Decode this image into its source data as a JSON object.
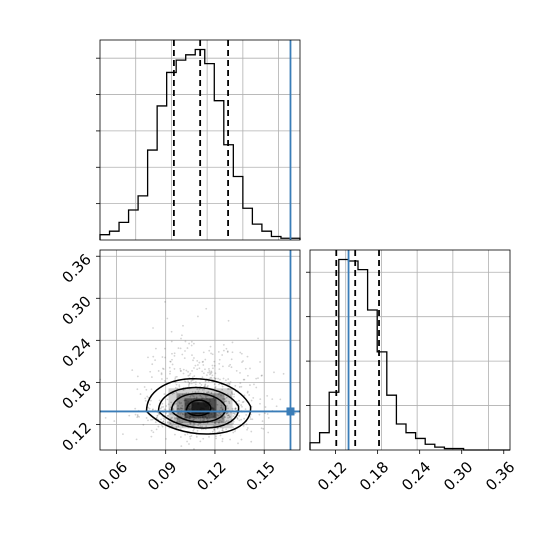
{
  "chart_data": [
    {
      "type": "histogram",
      "panel": "top-left marginal of x",
      "bin_edges": [
        0.05,
        0.0558,
        0.0616,
        0.0674,
        0.0732,
        0.079,
        0.0848,
        0.0906,
        0.0964,
        0.1022,
        0.108,
        0.1138,
        0.1196,
        0.1254,
        0.1312,
        0.137,
        0.1428,
        0.1486,
        0.1544,
        0.1602,
        0.166,
        0.1718
      ],
      "counts": [
        3,
        5,
        10,
        17,
        25,
        51,
        76,
        95,
        102,
        105,
        108,
        100,
        79,
        54,
        36,
        18,
        9,
        5,
        2,
        1,
        1
      ],
      "quantile_lines": [
        0.095,
        0.111,
        0.128
      ],
      "truth_line": 0.166,
      "xlim": [
        0.05,
        0.1718
      ],
      "grid": true,
      "yticks_count": 5,
      "line_color": "#000000",
      "truth_color": "#3a7db8"
    },
    {
      "type": "scatter+contour",
      "panel": "bottom-left 2D density",
      "xlim": [
        0.05,
        0.1718
      ],
      "ylim": [
        0.0835,
        0.3689
      ],
      "xticks": [
        "0.06",
        "0.09",
        "0.12",
        "0.15"
      ],
      "yticks": [
        "0.12",
        "0.18",
        "0.24",
        "0.30",
        "0.36"
      ],
      "density_center": [
        0.11,
        0.143
      ],
      "contour_levels": 4,
      "truth_point": [
        0.166,
        0.1385
      ],
      "grid": true,
      "truth_color": "#3a7db8"
    },
    {
      "type": "histogram",
      "panel": "bottom-right marginal of y",
      "bin_edges": [
        0.0835,
        0.0972,
        0.1109,
        0.1246,
        0.1383,
        0.152,
        0.1657,
        0.1794,
        0.1931,
        0.2068,
        0.2205,
        0.2342,
        0.2479,
        0.2616,
        0.2753,
        0.289,
        0.3027,
        0.3164,
        0.3301,
        0.3438,
        0.3575,
        0.3689
      ],
      "counts": [
        5,
        12,
        40,
        132,
        131,
        125,
        97,
        68,
        38,
        18,
        12,
        8,
        4,
        2,
        1,
        1,
        0,
        0,
        0,
        0,
        0
      ],
      "quantile_lines": [
        0.121,
        0.148,
        0.182
      ],
      "truth_line": 0.1385,
      "xlim": [
        0.0835,
        0.3689
      ],
      "xticks": [
        "0.12",
        "0.18",
        "0.24",
        "0.30",
        "0.36"
      ],
      "grid": true,
      "yticks_count": 4,
      "line_color": "#000000",
      "truth_color": "#3a7db8"
    }
  ]
}
